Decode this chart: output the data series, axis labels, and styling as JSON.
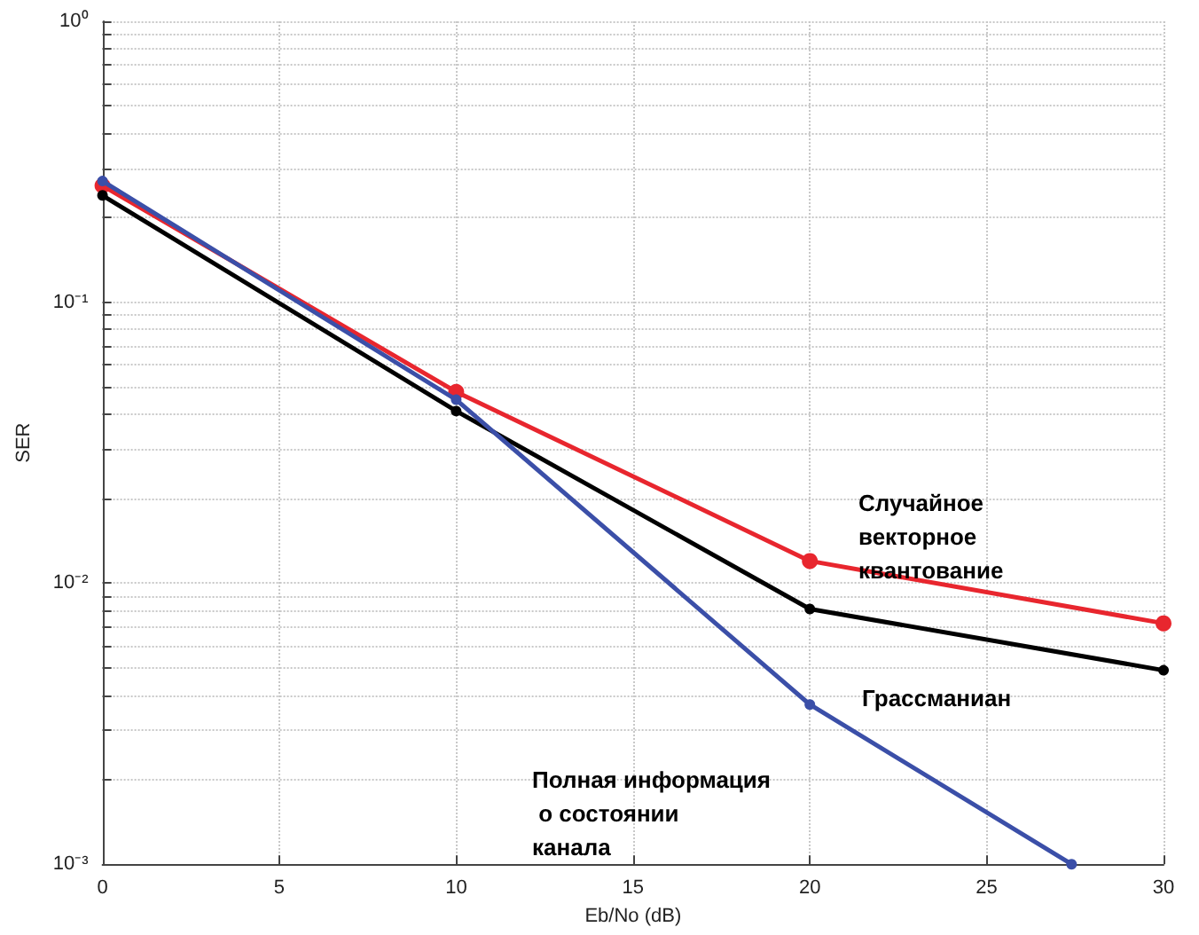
{
  "chart_data": {
    "type": "line",
    "xlabel": "Eb/No (dB)",
    "ylabel": "SER",
    "log": "y",
    "grid": true,
    "legend": false,
    "marker": "circle",
    "line_style": "solid",
    "xlim": [
      0,
      30
    ],
    "xticks": [
      0,
      5,
      10,
      15,
      20,
      25,
      30
    ],
    "ylim": [
      0.001,
      1
    ],
    "yticks": [
      {
        "value": 0.001,
        "label": "10⁻³"
      },
      {
        "value": 0.002,
        "label": null
      },
      {
        "value": 0.003,
        "label": null
      },
      {
        "value": 0.004,
        "label": null
      },
      {
        "value": 0.005,
        "label": null
      },
      {
        "value": 0.006,
        "label": null
      },
      {
        "value": 0.007,
        "label": null
      },
      {
        "value": 0.008,
        "label": null
      },
      {
        "value": 0.009,
        "label": null
      },
      {
        "value": 0.01,
        "label": "10⁻²"
      },
      {
        "value": 0.02,
        "label": null
      },
      {
        "value": 0.03,
        "label": null
      },
      {
        "value": 0.04,
        "label": null
      },
      {
        "value": 0.05,
        "label": null
      },
      {
        "value": 0.06,
        "label": null
      },
      {
        "value": 0.07,
        "label": null
      },
      {
        "value": 0.08,
        "label": null
      },
      {
        "value": 0.09,
        "label": null
      },
      {
        "value": 0.1,
        "label": "10⁻¹"
      },
      {
        "value": 0.2,
        "label": null
      },
      {
        "value": 0.3,
        "label": null
      },
      {
        "value": 0.4,
        "label": null
      },
      {
        "value": 0.5,
        "label": null
      },
      {
        "value": 0.6,
        "label": null
      },
      {
        "value": 0.7,
        "label": null
      },
      {
        "value": 0.8,
        "label": null
      },
      {
        "value": 0.9,
        "label": null
      },
      {
        "value": 1,
        "label": "10⁰"
      }
    ],
    "series": [
      {
        "color": "#e8262e",
        "x": [
          0,
          10,
          20,
          30
        ],
        "values": [
          0.26,
          0.048,
          0.012,
          0.0072
        ]
      },
      {
        "color": "#000000",
        "x": [
          0,
          10,
          20,
          30
        ],
        "values": [
          0.24,
          0.041,
          0.0081,
          0.0049
        ]
      },
      {
        "color": "#3b4fa8",
        "x": [
          0,
          10,
          20,
          27.4
        ],
        "values": [
          0.27,
          0.045,
          0.0037,
          0.001
        ]
      }
    ],
    "annotations": [
      "Случайное векторное квантование",
      "Грассманиан",
      "Полная информация о состоянии канала"
    ]
  }
}
